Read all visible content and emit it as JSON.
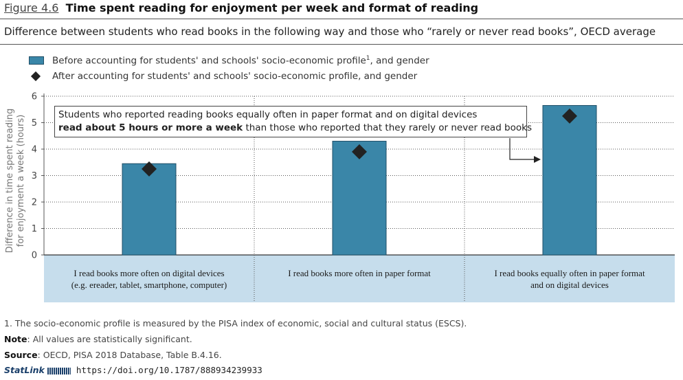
{
  "header": {
    "figure_number": "Figure 4.6",
    "title": "Time spent reading for enjoyment per week and format of reading",
    "subtitle": "Difference between students who read books in the following way and those who “rarely or never read books”, OECD average"
  },
  "legend": {
    "bar_label": "Before accounting for students' and schools' socio-economic profile",
    "bar_label_sup": "1",
    "bar_label_tail": ", and gender",
    "diamond_label": "After accounting for students' and schools' socio-economic profile, and gender"
  },
  "callout": {
    "line1": "Students who reported reading books equally often in paper format and on digital devices",
    "line2_bold": "read about 5 hours or more a week",
    "line2_rest": " than those who reported that they rarely or never read books"
  },
  "colors": {
    "bar": "#3a86a8",
    "bar_border": "#1f4e66",
    "diamond": "#222222",
    "category_band": "#c6ddec"
  },
  "chart_data": {
    "type": "bar",
    "categories": [
      [
        "I read books more often on digital devices",
        "(e.g. ereader, tablet, smartphone, computer)"
      ],
      [
        "I read books more often in paper format"
      ],
      [
        "I read books equally often in paper format",
        "and on digital devices"
      ]
    ],
    "series": [
      {
        "name": "Before accounting for students' and schools' socio-economic profile, and gender",
        "type": "bar",
        "values": [
          3.45,
          4.3,
          5.65
        ]
      },
      {
        "name": "After accounting for students' and schools' socio-economic profile, and gender",
        "type": "diamond",
        "values": [
          3.25,
          3.9,
          5.25
        ]
      }
    ],
    "ylabel": "Difference in time spent reading for enjoyment a week (hours)",
    "ylim": [
      0,
      6
    ],
    "yticks": [
      0,
      1,
      2,
      3,
      4,
      5,
      6
    ],
    "grid": true
  },
  "footer": {
    "note1": "1. The socio-economic profile is measured by the PISA index of economic, social and cultural status (ESCS).",
    "note_label": "Note",
    "note_text": ": All values are statistically significant.",
    "source_label": "Source",
    "source_text": ": OECD, PISA 2018 Database, Table B.4.16.",
    "statlink_label": "StatLink",
    "statlink_url": "https://doi.org/10.1787/888934239933"
  }
}
